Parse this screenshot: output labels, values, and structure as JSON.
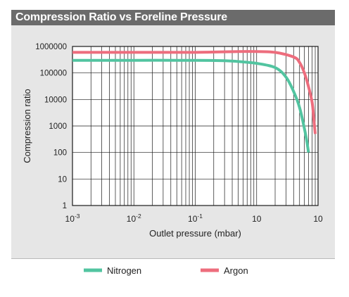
{
  "chart_data": {
    "type": "line",
    "title": "Compression Ratio vs Foreline Pressure",
    "xlabel": "Outlet pressure (mbar)",
    "ylabel": "Compression ratio",
    "x_scale": "log",
    "y_scale": "log",
    "xlim": [
      0.001,
      10
    ],
    "ylim": [
      1,
      1000000
    ],
    "x_ticks": [
      {
        "base": "10",
        "exp": "-3"
      },
      {
        "base": "10",
        "exp": "-2"
      },
      {
        "base": "10",
        "exp": "-1"
      },
      {
        "base": "10",
        "exp": ""
      },
      {
        "base": "10",
        "exp": ""
      }
    ],
    "y_ticks": [
      "1",
      "10",
      "100",
      "1000",
      "10000",
      "100000",
      "1000000"
    ],
    "grid": true,
    "legend_position": "bottom",
    "series": [
      {
        "name": "Nitrogen",
        "color": "#52c4a0",
        "x": [
          0.001,
          0.01,
          0.1,
          0.3,
          0.5,
          1,
          2,
          3,
          4,
          5,
          6,
          6.5,
          7
        ],
        "y": [
          300000,
          300000,
          300000,
          290000,
          270000,
          230000,
          160000,
          70000,
          20000,
          5000,
          800,
          300,
          100
        ]
      },
      {
        "name": "Argon",
        "color": "#ed6d7d",
        "x": [
          0.001,
          0.01,
          0.1,
          0.5,
          1,
          2,
          4,
          5,
          6,
          7,
          8,
          8.5,
          9
        ],
        "y": [
          600000,
          600000,
          600000,
          640000,
          640000,
          600000,
          400000,
          250000,
          100000,
          30000,
          8000,
          2000,
          500
        ]
      }
    ]
  }
}
